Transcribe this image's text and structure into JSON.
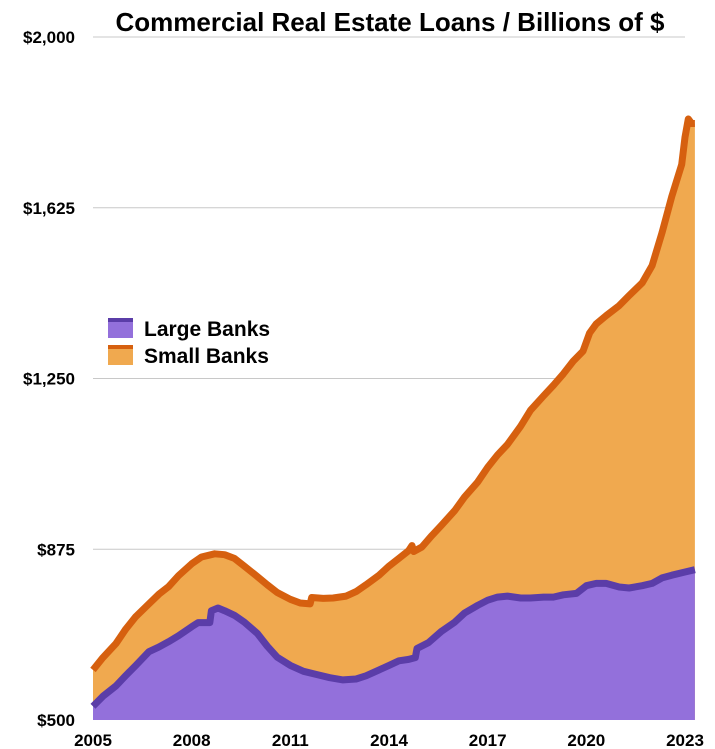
{
  "chart_data": {
    "type": "area",
    "stacked": true,
    "title": "Commercial Real Estate Loans / Billions of $",
    "xlabel": "",
    "ylabel": "",
    "xlim": [
      2005,
      2023
    ],
    "ylim": [
      500,
      2000
    ],
    "x_ticks": [
      "2005",
      "2008",
      "2011",
      "2014",
      "2017",
      "2020",
      "2023"
    ],
    "y_ticks": [
      {
        "value": 500,
        "label": "$500"
      },
      {
        "value": 875,
        "label": "$875"
      },
      {
        "value": 1250,
        "label": "$1,250"
      },
      {
        "value": 1625,
        "label": "$1,625"
      },
      {
        "value": 2000,
        "label": "$2,000"
      }
    ],
    "grid": true,
    "legend_position": "left-middle",
    "series": [
      {
        "name": "Large Banks",
        "fill": "#9370db",
        "line": "#5b3da8",
        "points": [
          [
            2005.0,
            530
          ],
          [
            2005.3,
            552
          ],
          [
            2005.7,
            575
          ],
          [
            2006.0,
            598
          ],
          [
            2006.3,
            620
          ],
          [
            2006.7,
            650
          ],
          [
            2007.0,
            660
          ],
          [
            2007.3,
            672
          ],
          [
            2007.6,
            685
          ],
          [
            2008.0,
            705
          ],
          [
            2008.2,
            714
          ],
          [
            2008.55,
            714
          ],
          [
            2008.6,
            740
          ],
          [
            2008.8,
            746
          ],
          [
            2009.0,
            740
          ],
          [
            2009.3,
            730
          ],
          [
            2009.6,
            715
          ],
          [
            2010.0,
            690
          ],
          [
            2010.3,
            662
          ],
          [
            2010.6,
            638
          ],
          [
            2011.0,
            620
          ],
          [
            2011.4,
            607
          ],
          [
            2011.8,
            600
          ],
          [
            2012.2,
            593
          ],
          [
            2012.6,
            588
          ],
          [
            2013.0,
            590
          ],
          [
            2013.3,
            597
          ],
          [
            2013.7,
            610
          ],
          [
            2014.0,
            620
          ],
          [
            2014.3,
            630
          ],
          [
            2014.6,
            633
          ],
          [
            2014.8,
            637
          ],
          [
            2014.85,
            657
          ],
          [
            2015.2,
            670
          ],
          [
            2015.6,
            695
          ],
          [
            2016.0,
            715
          ],
          [
            2016.3,
            735
          ],
          [
            2016.7,
            752
          ],
          [
            2017.0,
            763
          ],
          [
            2017.3,
            770
          ],
          [
            2017.6,
            772
          ],
          [
            2018.0,
            768
          ],
          [
            2018.3,
            768
          ],
          [
            2018.7,
            770
          ],
          [
            2019.0,
            770
          ],
          [
            2019.3,
            775
          ],
          [
            2019.7,
            778
          ],
          [
            2020.0,
            795
          ],
          [
            2020.3,
            800
          ],
          [
            2020.6,
            800
          ],
          [
            2021.0,
            792
          ],
          [
            2021.3,
            790
          ],
          [
            2021.7,
            795
          ],
          [
            2022.0,
            800
          ],
          [
            2022.3,
            812
          ],
          [
            2022.6,
            818
          ],
          [
            2023.0,
            825
          ],
          [
            2023.3,
            830
          ]
        ]
      },
      {
        "name": "Small Banks",
        "fill": "#f0a94f",
        "line": "#d6600f",
        "points": [
          [
            2005.0,
            610
          ],
          [
            2005.3,
            637
          ],
          [
            2005.7,
            668
          ],
          [
            2006.0,
            700
          ],
          [
            2006.3,
            727
          ],
          [
            2006.7,
            755
          ],
          [
            2007.0,
            776
          ],
          [
            2007.3,
            793
          ],
          [
            2007.6,
            817
          ],
          [
            2008.0,
            843
          ],
          [
            2008.3,
            858
          ],
          [
            2008.7,
            865
          ],
          [
            2009.0,
            863
          ],
          [
            2009.3,
            855
          ],
          [
            2009.6,
            838
          ],
          [
            2010.0,
            815
          ],
          [
            2010.3,
            797
          ],
          [
            2010.6,
            780
          ],
          [
            2011.0,
            765
          ],
          [
            2011.3,
            757
          ],
          [
            2011.6,
            755
          ],
          [
            2011.65,
            769
          ],
          [
            2012.0,
            767
          ],
          [
            2012.3,
            768
          ],
          [
            2012.7,
            772
          ],
          [
            2013.0,
            782
          ],
          [
            2013.3,
            797
          ],
          [
            2013.7,
            818
          ],
          [
            2014.0,
            838
          ],
          [
            2014.3,
            855
          ],
          [
            2014.6,
            872
          ],
          [
            2014.7,
            883
          ],
          [
            2014.75,
            870
          ],
          [
            2015.0,
            880
          ],
          [
            2015.3,
            905
          ],
          [
            2015.6,
            928
          ],
          [
            2016.0,
            960
          ],
          [
            2016.3,
            990
          ],
          [
            2016.7,
            1023
          ],
          [
            2017.0,
            1055
          ],
          [
            2017.3,
            1082
          ],
          [
            2017.6,
            1105
          ],
          [
            2018.0,
            1145
          ],
          [
            2018.3,
            1180
          ],
          [
            2018.7,
            1212
          ],
          [
            2019.0,
            1235
          ],
          [
            2019.3,
            1260
          ],
          [
            2019.6,
            1288
          ],
          [
            2019.9,
            1310
          ],
          [
            2020.0,
            1330
          ],
          [
            2020.1,
            1350
          ],
          [
            2020.3,
            1370
          ],
          [
            2020.6,
            1388
          ],
          [
            2021.0,
            1410
          ],
          [
            2021.3,
            1432
          ],
          [
            2021.7,
            1460
          ],
          [
            2022.0,
            1498
          ],
          [
            2022.3,
            1570
          ],
          [
            2022.6,
            1650
          ],
          [
            2022.9,
            1720
          ],
          [
            2023.0,
            1780
          ],
          [
            2023.1,
            1820
          ],
          [
            2023.2,
            1810
          ],
          [
            2023.3,
            1810
          ]
        ]
      }
    ]
  }
}
